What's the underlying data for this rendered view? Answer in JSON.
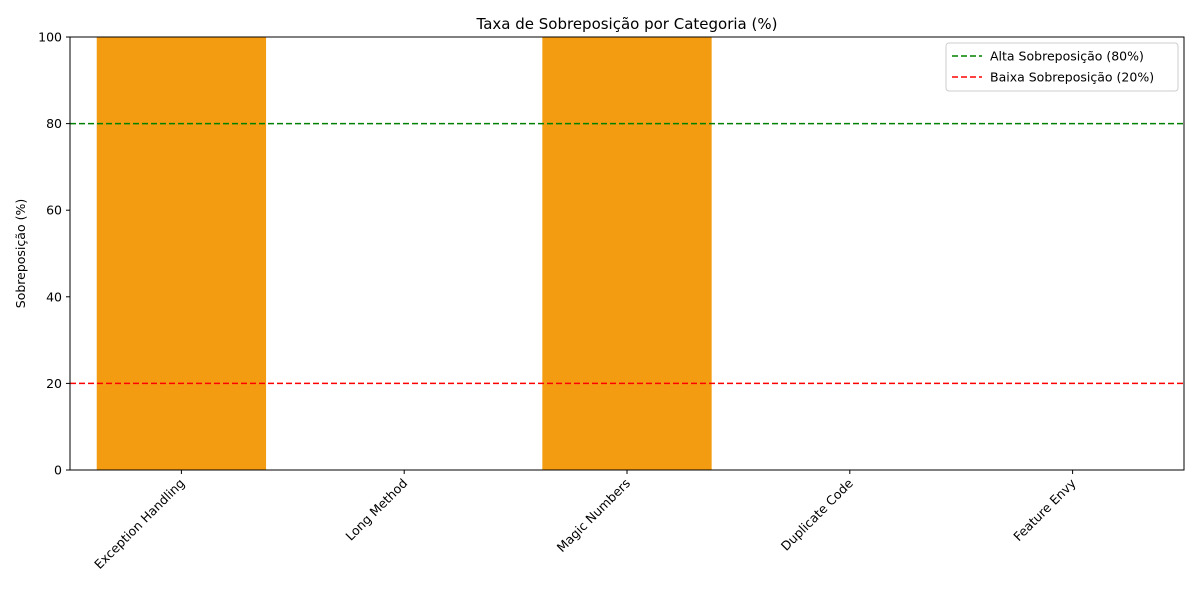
{
  "chart_data": {
    "type": "bar",
    "title": "Taxa de Sobreposição por Categoria (%)",
    "xlabel": "",
    "ylabel": "Sobreposição (%)",
    "categories": [
      "Exception Handling",
      "Long Method",
      "Magic Numbers",
      "Duplicate Code",
      "Feature Envy"
    ],
    "values": [
      100,
      0,
      100,
      0,
      0
    ],
    "ylim": [
      0,
      100
    ],
    "yticks": [
      0,
      20,
      40,
      60,
      80,
      100
    ],
    "bar_color": "#f39c12",
    "grid": false,
    "reference_lines": [
      {
        "label": "Alta Sobreposição (80%)",
        "y": 80,
        "color": "#008000",
        "style": "dashed"
      },
      {
        "label": "Baixa Sobreposição (20%)",
        "y": 20,
        "color": "#ff0000",
        "style": "dashed"
      }
    ],
    "legend_position": "top-right"
  }
}
